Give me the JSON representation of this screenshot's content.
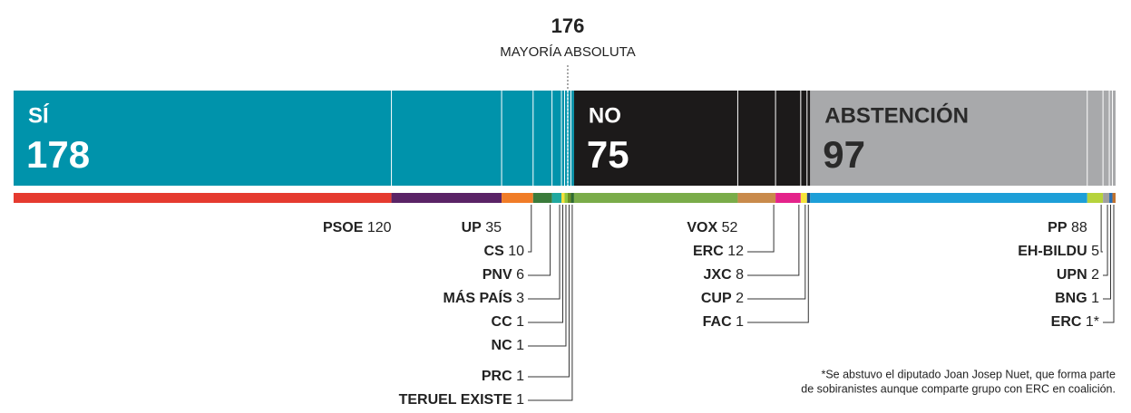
{
  "chart_data": {
    "type": "vote-bar",
    "majority": {
      "value": 176,
      "label": "MAYORÍA ABSOLUTA"
    },
    "groups": [
      {
        "name": "SÍ",
        "value": 178,
        "color": "#0093ab",
        "text_color": "#ffffff",
        "parties": [
          {
            "name": "PSOE",
            "value": 120,
            "color": "#e53a2f"
          },
          {
            "name": "UP",
            "value": 35,
            "color": "#5a2366"
          },
          {
            "name": "CS",
            "value": 10,
            "color": "#f07c27"
          },
          {
            "name": "PNV",
            "value": 6,
            "color": "#3a7b3b"
          },
          {
            "name": "MÁS PAÍS",
            "value": 3,
            "color": "#20a89f"
          },
          {
            "name": "CC",
            "value": 1,
            "color": "#f4e03a"
          },
          {
            "name": "NC",
            "value": 1,
            "color": "#8cc63f"
          },
          {
            "name": "PRC",
            "value": 1,
            "color": "#6b8e23"
          },
          {
            "name": "TERUEL EXISTE",
            "value": 1,
            "color": "#2d6a2f"
          }
        ]
      },
      {
        "name": "NO",
        "value": 75,
        "color": "#1c1a1a",
        "text_color": "#ffffff",
        "parties": [
          {
            "name": "VOX",
            "value": 52,
            "color": "#7aac49"
          },
          {
            "name": "ERC",
            "value": 12,
            "color": "#c98a4b"
          },
          {
            "name": "JXC",
            "value": 8,
            "color": "#e4238a"
          },
          {
            "name": "CUP",
            "value": 2,
            "color": "#f6e33a"
          },
          {
            "name": "FAC",
            "value": 1,
            "color": "#1f3f7a"
          }
        ]
      },
      {
        "name": "ABSTENCIÓN",
        "value": 97,
        "color": "#a8a9ab",
        "text_color": "#2a2a2a",
        "parties": [
          {
            "name": "PP",
            "value": 88,
            "color": "#1d9fd8"
          },
          {
            "name": "EH-BILDU",
            "value": 5,
            "color": "#b6d33c"
          },
          {
            "name": "UPN",
            "value": 2,
            "color": "#a0a0a0"
          },
          {
            "name": "BNG",
            "value": 1,
            "color": "#2a6fb5"
          },
          {
            "name": "ERC",
            "value": 1,
            "value_label": "1*",
            "color": "#c0722f"
          }
        ]
      }
    ],
    "footnote": [
      "*Se abstuvo el diputado Joan Josep Nuet, que forma parte",
      "de sobiranistes aunque comparte grupo con ERC en coalición."
    ]
  }
}
